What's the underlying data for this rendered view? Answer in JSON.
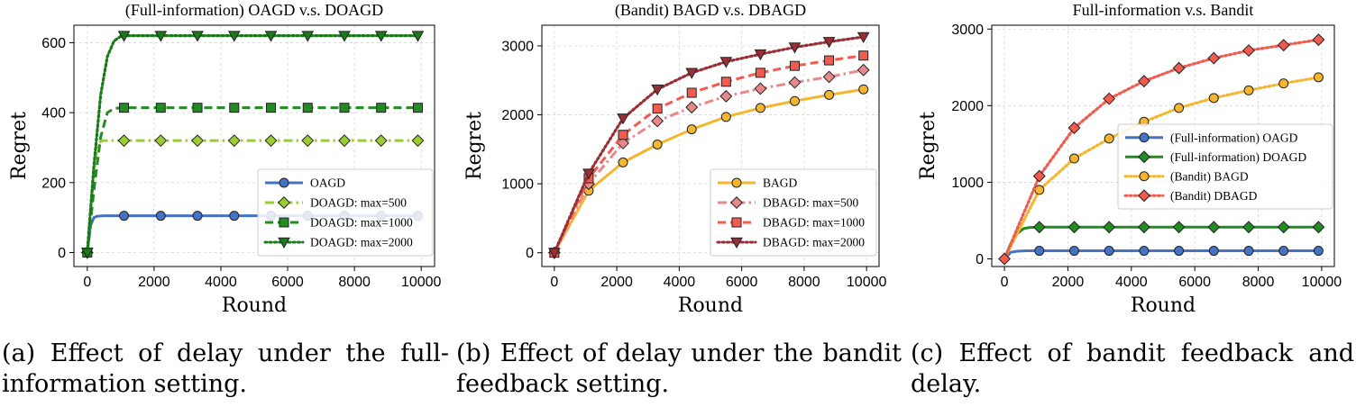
{
  "chart_data": [
    {
      "type": "line",
      "title": "(Full-information) OAGD v.s. DOAGD",
      "xlabel": "Round",
      "ylabel": "Regret",
      "xlim": [
        -400,
        10400
      ],
      "ylim": [
        -40,
        650
      ],
      "xticks": [
        0,
        2000,
        4000,
        6000,
        8000,
        10000
      ],
      "yticks": [
        0,
        200,
        400,
        600
      ],
      "grid": true,
      "legend_position": "lower-right",
      "series": [
        {
          "name": "OAGD",
          "color": "#4472c4",
          "line": "solid",
          "marker": "circle",
          "x": [
            0,
            100,
            200,
            300,
            500,
            1100,
            2200,
            3300,
            4400,
            5500,
            6600,
            7700,
            8800,
            9900
          ],
          "y": [
            0,
            78,
            100,
            104,
            105,
            105,
            105,
            105,
            105,
            105,
            105,
            105,
            105,
            105
          ],
          "mx": [
            0,
            1100,
            2200,
            3300,
            4400,
            5500,
            6600,
            7700,
            8800,
            9900
          ]
        },
        {
          "name": "DOAGD: max=500",
          "color": "#9acd32",
          "line": "dashdot",
          "marker": "diamond",
          "x": [
            0,
            100,
            200,
            300,
            400,
            500,
            1100,
            2200,
            3300,
            4400,
            5500,
            6600,
            7700,
            8800,
            9900
          ],
          "y": [
            0,
            120,
            230,
            300,
            318,
            320,
            320,
            320,
            320,
            320,
            320,
            320,
            320,
            320,
            320
          ],
          "mx": [
            0,
            1100,
            2200,
            3300,
            4400,
            5500,
            6600,
            7700,
            8800,
            9900
          ]
        },
        {
          "name": "DOAGD: max=1000",
          "color": "#228b22",
          "line": "dashed",
          "marker": "square",
          "x": [
            0,
            200,
            400,
            600,
            800,
            1100,
            2200,
            3300,
            4400,
            5500,
            6600,
            7700,
            8800,
            9900
          ],
          "y": [
            0,
            180,
            330,
            400,
            412,
            414,
            414,
            414,
            414,
            414,
            414,
            414,
            414,
            414
          ],
          "mx": [
            0,
            1100,
            2200,
            3300,
            4400,
            5500,
            6600,
            7700,
            8800,
            9900
          ]
        },
        {
          "name": "DOAGD: max=2000",
          "color": "#1a7a1a",
          "line": "dotted",
          "marker": "triangle-down",
          "x": [
            0,
            200,
            400,
            600,
            800,
            1000,
            1100,
            2200,
            3300,
            4400,
            5500,
            6600,
            7700,
            8800,
            9900
          ],
          "y": [
            0,
            250,
            450,
            560,
            605,
            618,
            620,
            620,
            620,
            620,
            620,
            620,
            620,
            620,
            620
          ],
          "mx": [
            0,
            1100,
            2200,
            3300,
            4400,
            5500,
            6600,
            7700,
            8800,
            9900
          ]
        }
      ]
    },
    {
      "type": "line",
      "title": "(Bandit) BAGD v.s. DBAGD",
      "xlabel": "Round",
      "ylabel": "Regret",
      "xlim": [
        -400,
        10400
      ],
      "ylim": [
        -200,
        3300
      ],
      "xticks": [
        0,
        2000,
        4000,
        6000,
        8000,
        10000
      ],
      "yticks": [
        0,
        1000,
        2000,
        3000
      ],
      "grid": true,
      "legend_position": "lower-right",
      "series": [
        {
          "name": "BAGD",
          "color": "#f5b52f",
          "line": "solid",
          "marker": "circle",
          "x": [
            0,
            1100,
            2200,
            3300,
            4400,
            5500,
            6600,
            7700,
            8800,
            9900
          ],
          "y": [
            0,
            900,
            1310,
            1570,
            1790,
            1970,
            2100,
            2200,
            2290,
            2370
          ],
          "mx": [
            0,
            1100,
            2200,
            3300,
            4400,
            5500,
            6600,
            7700,
            8800,
            9900
          ]
        },
        {
          "name": "DBAGD: max=500",
          "color": "#e8888a",
          "line": "dashdot",
          "marker": "diamond",
          "x": [
            0,
            1100,
            2200,
            3300,
            4400,
            5500,
            6600,
            7700,
            8800,
            9900
          ],
          "y": [
            0,
            1000,
            1590,
            1910,
            2110,
            2270,
            2380,
            2470,
            2550,
            2650
          ],
          "mx": [
            0,
            1100,
            2200,
            3300,
            4400,
            5500,
            6600,
            7700,
            8800,
            9900
          ]
        },
        {
          "name": "DBAGD: max=1000",
          "color": "#f25b4e",
          "line": "dashed",
          "marker": "square",
          "x": [
            0,
            1100,
            2200,
            3300,
            4400,
            5500,
            6600,
            7700,
            8800,
            9900
          ],
          "y": [
            0,
            1080,
            1710,
            2090,
            2320,
            2480,
            2610,
            2710,
            2790,
            2860
          ],
          "mx": [
            0,
            1100,
            2200,
            3300,
            4400,
            5500,
            6600,
            7700,
            8800,
            9900
          ]
        },
        {
          "name": "DBAGD: max=2000",
          "color": "#9a2e35",
          "line": "dotted",
          "marker": "triangle-down",
          "x": [
            0,
            1100,
            2200,
            3300,
            4400,
            5500,
            6600,
            7700,
            8800,
            9900
          ],
          "y": [
            0,
            1150,
            1950,
            2370,
            2610,
            2770,
            2880,
            2980,
            3060,
            3130
          ],
          "mx": [
            0,
            1100,
            2200,
            3300,
            4400,
            5500,
            6600,
            7700,
            8800,
            9900
          ]
        }
      ]
    },
    {
      "type": "line",
      "title": "Full-information v.s. Bandit",
      "xlabel": "Round",
      "ylabel": "Regret",
      "xlim": [
        -400,
        10400
      ],
      "ylim": [
        -100,
        3050
      ],
      "xticks": [
        0,
        2000,
        4000,
        6000,
        8000,
        10000
      ],
      "yticks": [
        0,
        1000,
        2000,
        3000
      ],
      "grid": true,
      "legend_position": "center-right",
      "series": [
        {
          "name": "(Full-information) OAGD",
          "color": "#4472c4",
          "line": "solid",
          "marker": "circle",
          "x": [
            0,
            200,
            400,
            700,
            1100,
            2200,
            3300,
            4400,
            5500,
            6600,
            7700,
            8800,
            9900
          ],
          "y": [
            0,
            85,
            100,
            105,
            105,
            105,
            105,
            105,
            105,
            105,
            105,
            105,
            105
          ],
          "mx": [
            1100,
            2200,
            3300,
            4400,
            5500,
            6600,
            7700,
            8800,
            9900
          ]
        },
        {
          "name": "(Full-information) DOAGD",
          "color": "#228b22",
          "line": "solid",
          "marker": "diamond",
          "x": [
            0,
            200,
            400,
            600,
            800,
            1100,
            2200,
            3300,
            4400,
            5500,
            6600,
            7700,
            8800,
            9900
          ],
          "y": [
            0,
            200,
            330,
            395,
            410,
            414,
            414,
            414,
            414,
            414,
            414,
            414,
            414,
            414
          ],
          "mx": [
            1100,
            2200,
            3300,
            4400,
            5500,
            6600,
            7700,
            8800,
            9900
          ]
        },
        {
          "name": "(Bandit) BAGD",
          "color": "#f5b52f",
          "line": "dotted",
          "marker": "circle",
          "x": [
            0,
            1100,
            2200,
            3300,
            4400,
            5500,
            6600,
            7700,
            8800,
            9900
          ],
          "y": [
            0,
            900,
            1310,
            1570,
            1790,
            1970,
            2100,
            2200,
            2290,
            2370
          ],
          "mx": [
            1100,
            2200,
            3300,
            4400,
            5500,
            6600,
            7700,
            8800,
            9900
          ]
        },
        {
          "name": "(Bandit) DBAGD",
          "color": "#f25b4e",
          "line": "dotted",
          "marker": "diamond",
          "x": [
            0,
            1100,
            2200,
            3300,
            4400,
            5500,
            6600,
            7700,
            8800,
            9900
          ],
          "y": [
            0,
            1080,
            1710,
            2090,
            2320,
            2490,
            2620,
            2720,
            2790,
            2860
          ],
          "mx": [
            0,
            1100,
            2200,
            3300,
            4400,
            5500,
            6600,
            7700,
            8800,
            9900
          ]
        }
      ]
    }
  ],
  "captions": [
    "(a) Effect of delay under the full-information setting.",
    "(b) Effect of delay under the bandit feedback setting.",
    "(c) Effect of bandit feedback and delay."
  ]
}
